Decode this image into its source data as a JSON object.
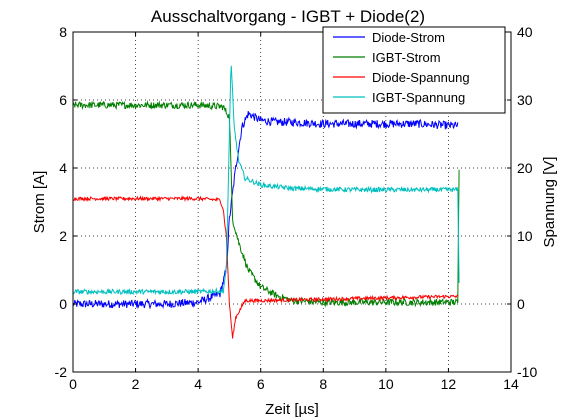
{
  "chart_data": {
    "type": "line",
    "title": "Ausschaltvorgang - IGBT + Diode(2)",
    "xlabel": "Zeit [µs]",
    "ylabel_left": "Strom [A]",
    "ylabel_right": "Spannung [V]",
    "xlim": [
      0,
      14
    ],
    "ylim_left": [
      -2,
      8
    ],
    "ylim_right": [
      -10,
      40
    ],
    "x_ticks": [
      "0",
      "2",
      "4",
      "6",
      "8",
      "10",
      "12",
      "14"
    ],
    "y_ticks_left": [
      "-2",
      "0",
      "2",
      "4",
      "6",
      "8"
    ],
    "y_ticks_right": [
      "-10",
      "0",
      "10",
      "20",
      "30",
      "40"
    ],
    "grid": true,
    "legend_position": "top-right",
    "series": [
      {
        "name": "Diode-Strom",
        "axis": "left",
        "color": "#0000ff",
        "x": [
          0,
          1,
          2,
          3,
          4,
          4.7,
          4.9,
          5.0,
          5.2,
          5.4,
          5.6,
          5.8,
          6.0,
          6.5,
          7,
          8,
          9,
          10,
          11,
          12,
          12.3
        ],
        "y": [
          0.0,
          0.0,
          0.0,
          0.0,
          0.05,
          0.3,
          1.0,
          2.5,
          4.0,
          5.2,
          5.6,
          5.5,
          5.4,
          5.35,
          5.35,
          5.3,
          5.3,
          5.3,
          5.3,
          5.25,
          5.25
        ]
      },
      {
        "name": "IGBT-Strom",
        "axis": "left",
        "color": "#007f00",
        "x": [
          0,
          1,
          2,
          3,
          4,
          4.8,
          5.0,
          5.1,
          5.3,
          5.6,
          6.0,
          6.5,
          7,
          8,
          9,
          10,
          11,
          12,
          12.3,
          12.35
        ],
        "y": [
          5.85,
          5.85,
          5.85,
          5.85,
          5.85,
          5.8,
          5.5,
          2.5,
          1.8,
          1.0,
          0.5,
          0.25,
          0.1,
          0.05,
          0.05,
          0.05,
          0.05,
          0.05,
          0.05,
          5.0
        ]
      },
      {
        "name": "Diode-Spannung",
        "axis": "right",
        "color": "#ff0000",
        "x": [
          0,
          1,
          2,
          3,
          4,
          4.7,
          4.8,
          4.9,
          5.0,
          5.1,
          5.2,
          5.5,
          6,
          7,
          8,
          9,
          10,
          11,
          12,
          12.3
        ],
        "y": [
          15.5,
          15.5,
          15.5,
          15.5,
          15.5,
          15.3,
          14.0,
          10.0,
          0.0,
          -5.0,
          -2.0,
          0.5,
          0.5,
          0.6,
          0.7,
          0.8,
          0.9,
          1.0,
          1.1,
          1.1
        ]
      },
      {
        "name": "IGBT-Spannung",
        "axis": "right",
        "color": "#00bfbf",
        "x": [
          0,
          1,
          2,
          3,
          4,
          4.8,
          4.9,
          5.0,
          5.05,
          5.15,
          5.3,
          5.5,
          6,
          7,
          8,
          9,
          10,
          11,
          12,
          12.3,
          12.35
        ],
        "y": [
          1.8,
          1.8,
          1.8,
          1.8,
          1.8,
          1.9,
          5.0,
          25.0,
          36.0,
          26.0,
          21.0,
          18.5,
          17.5,
          17.0,
          16.9,
          16.8,
          16.8,
          16.8,
          16.8,
          16.8,
          0.0
        ]
      }
    ]
  }
}
